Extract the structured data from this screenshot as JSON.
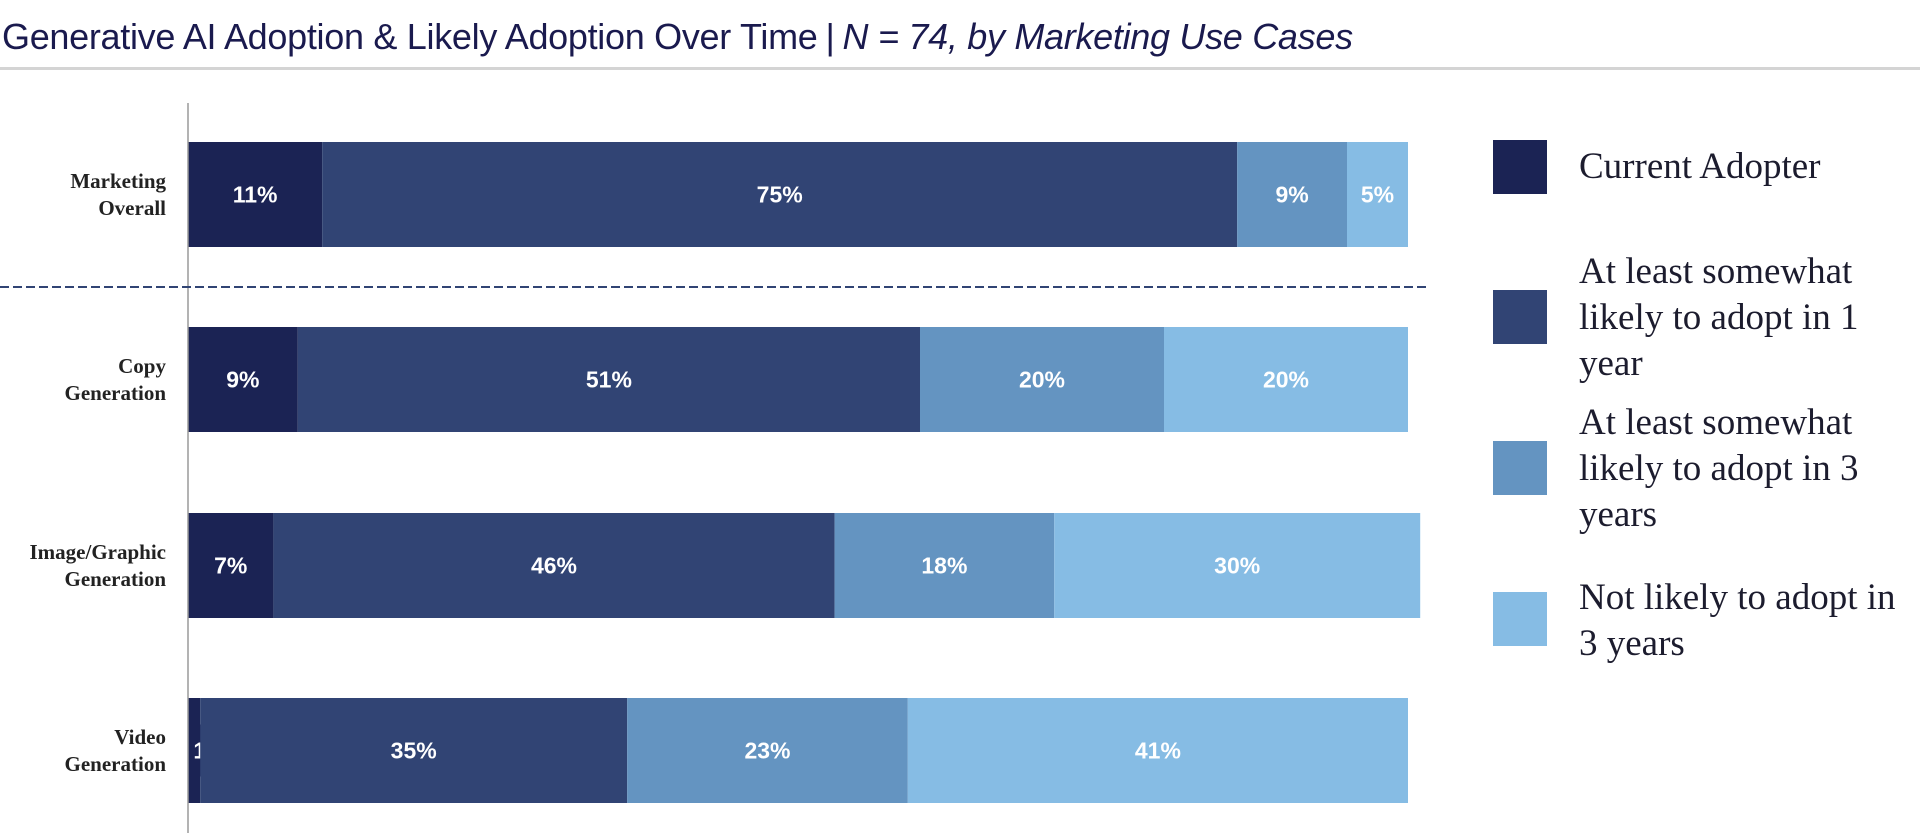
{
  "title": {
    "main": "Generative AI Adoption & Likely Adoption Over Time",
    "separator": "|",
    "sub": "N = 74, by Marketing Use Cases"
  },
  "legend": [
    {
      "label": "Current Adopter",
      "color": "#1b2354"
    },
    {
      "label": "At least somewhat likely to adopt in 1 year",
      "color": "#314474"
    },
    {
      "label": "At least somewhat likely to adopt in 3 years",
      "color": "#6494c1"
    },
    {
      "label": "Not likely to adopt in 3 years",
      "color": "#86bce4"
    }
  ],
  "chart_data": {
    "type": "bar",
    "orientation": "horizontal",
    "stacked": true,
    "title": "Generative AI Adoption & Likely Adoption Over Time | N = 74, by Marketing Use Cases",
    "categories": [
      "Marketing Overall",
      "Copy Generation",
      "Image/Graphic Generation",
      "Video Generation"
    ],
    "series": [
      {
        "name": "Current Adopter",
        "color": "#1b2354",
        "values": [
          11,
          9,
          7,
          1
        ]
      },
      {
        "name": "At least somewhat likely to adopt in 1 year",
        "color": "#314474",
        "values": [
          75,
          51,
          46,
          35
        ]
      },
      {
        "name": "At least somewhat likely to adopt in 3 years",
        "color": "#6494c1",
        "values": [
          9,
          20,
          18,
          23
        ]
      },
      {
        "name": "Not likely to adopt in 3 years",
        "color": "#86bce4",
        "values": [
          5,
          20,
          30,
          41
        ]
      }
    ],
    "value_suffix": "%",
    "xlim": [
      0,
      100
    ],
    "grid": false,
    "legend_position": "right",
    "divider_after_category": "Marketing Overall"
  }
}
